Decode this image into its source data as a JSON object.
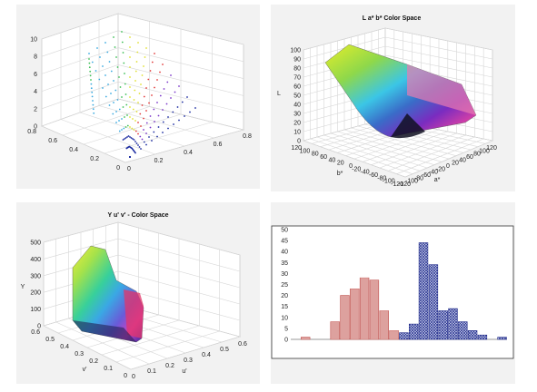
{
  "chart_data": [
    {
      "type": "scatter",
      "subtype": "scatter3d",
      "title": "",
      "zlim": [
        0,
        10
      ],
      "xlim": [
        0,
        0.8
      ],
      "ylim": [
        0,
        0.8
      ],
      "z_ticks": [
        "0",
        "2",
        "4",
        "6",
        "8",
        "10"
      ],
      "y_ticks": [
        "0",
        "0.2",
        "0.4",
        "0.6",
        "0.8"
      ],
      "x_ticks": [
        "0",
        "0.2",
        "0.4",
        "0.6",
        "0.8"
      ],
      "grid": true,
      "colors": [
        "#39a9e0",
        "#3cbf55",
        "#e0e030",
        "#e23a3a",
        "#7a35c8",
        "#1a2aa0"
      ]
    },
    {
      "type": "area",
      "subtype": "surface3d",
      "title": "L a* b* Color Space",
      "zlabel": "L",
      "xlabel": "a*",
      "ylabel": "b*",
      "z_ticks": [
        "0",
        "10",
        "20",
        "30",
        "40",
        "50",
        "60",
        "70",
        "80",
        "90",
        "100"
      ],
      "x_ticks": [
        "-120",
        "-100",
        "-80",
        "-60",
        "-40",
        "-20",
        "0",
        "20",
        "40",
        "60",
        "80",
        "100",
        "120"
      ],
      "y_ticks": [
        "120",
        "100",
        "80",
        "60",
        "40",
        "20",
        "0",
        "-20",
        "-40",
        "-60",
        "-80",
        "-100",
        "-120"
      ],
      "zlim": [
        0,
        100
      ],
      "grid": true
    },
    {
      "type": "area",
      "subtype": "surface3d",
      "title": "Y u'  v'  - Color Space",
      "zlabel": "Y",
      "xlabel": "u'",
      "ylabel": "v'",
      "z_ticks": [
        "0",
        "100",
        "200",
        "300",
        "400",
        "500"
      ],
      "x_ticks": [
        "0",
        "0.1",
        "0.2",
        "0.3",
        "0.4",
        "0.5",
        "0.6"
      ],
      "y_ticks": [
        "0",
        "0.1",
        "0.2",
        "0.3",
        "0.4",
        "0.5",
        "0.6"
      ],
      "zlim": [
        0,
        500
      ],
      "grid": true
    },
    {
      "type": "bar",
      "subtype": "histogram",
      "title": "",
      "ylim": [
        0,
        50
      ],
      "y_ticks": [
        "0",
        "5",
        "10",
        "15",
        "20",
        "25",
        "30",
        "35",
        "40",
        "45",
        "50"
      ],
      "grid": false,
      "series": [
        {
          "values": [
            0,
            1,
            0,
            0,
            8,
            20,
            23,
            28,
            27,
            13,
            4,
            1,
            0,
            0,
            0,
            0,
            0,
            0,
            0,
            0,
            0,
            0
          ],
          "color": "#c0504d",
          "pattern": "horizontal-lines"
        },
        {
          "values": [
            0,
            0,
            0,
            0,
            0,
            0,
            0,
            0,
            0,
            0,
            0,
            3,
            7,
            44,
            34,
            13,
            14,
            8,
            4,
            2,
            0,
            1
          ],
          "color": "#1f2a8a",
          "pattern": "crosshatch"
        }
      ]
    }
  ]
}
